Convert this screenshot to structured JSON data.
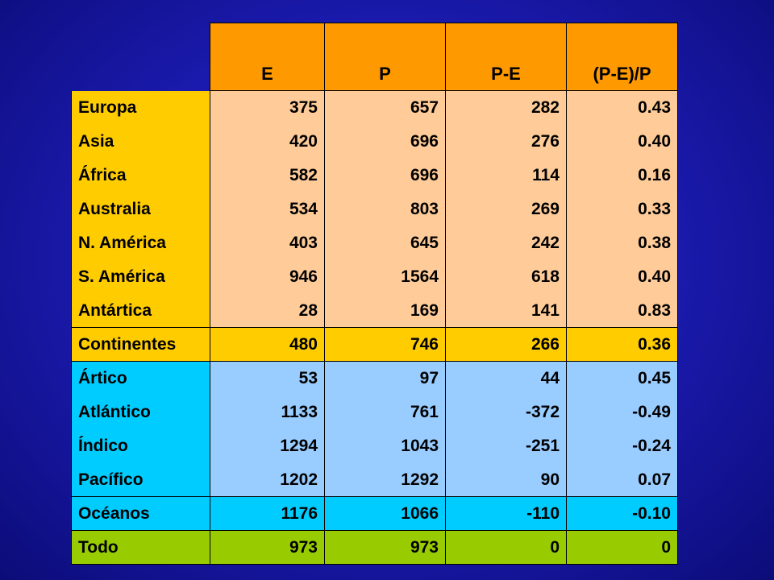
{
  "table": {
    "headers": [
      "E",
      "P",
      "P-E",
      "(P-E)/P"
    ],
    "groups": [
      {
        "kind": "continent",
        "rows": [
          {
            "label": "Europa",
            "values": [
              "375",
              "657",
              "282",
              "0.43"
            ]
          },
          {
            "label": "Asia",
            "values": [
              "420",
              "696",
              "276",
              "0.40"
            ]
          },
          {
            "label": "África",
            "values": [
              "582",
              "696",
              "114",
              "0.16"
            ]
          },
          {
            "label": "Australia",
            "values": [
              "534",
              "803",
              "269",
              "0.33"
            ]
          },
          {
            "label": "N. América",
            "values": [
              "403",
              "645",
              "242",
              "0.38"
            ]
          },
          {
            "label": "S. América",
            "values": [
              "946",
              "1564",
              "618",
              "0.40"
            ]
          },
          {
            "label": "Antártica",
            "values": [
              "28",
              "169",
              "141",
              "0.83"
            ]
          }
        ],
        "summary": {
          "label": "Continentes",
          "values": [
            "480",
            "746",
            "266",
            "0.36"
          ]
        }
      },
      {
        "kind": "ocean",
        "rows": [
          {
            "label": "Ártico",
            "values": [
              "53",
              "97",
              "44",
              "0.45"
            ]
          },
          {
            "label": "Atlántico",
            "values": [
              "1133",
              "761",
              "-372",
              "-0.49"
            ]
          },
          {
            "label": "Índico",
            "values": [
              "1294",
              "1043",
              "-251",
              "-0.24"
            ]
          },
          {
            "label": "Pacífico",
            "values": [
              "1202",
              "1292",
              "90",
              "0.07"
            ]
          }
        ],
        "summary": {
          "label": "Océanos",
          "values": [
            "1176",
            "1066",
            "-110",
            "-0.10"
          ]
        }
      }
    ],
    "total": {
      "label": "Todo",
      "values": [
        "973",
        "973",
        "0",
        "0"
      ]
    }
  },
  "colors": {
    "background": "#1c1cb4",
    "header": "#ff9900",
    "continent_label": "#ffcc00",
    "continent_cell": "#ffcc99",
    "ocean_label": "#00ccff",
    "ocean_cell": "#99ccff",
    "total": "#99cc00"
  }
}
